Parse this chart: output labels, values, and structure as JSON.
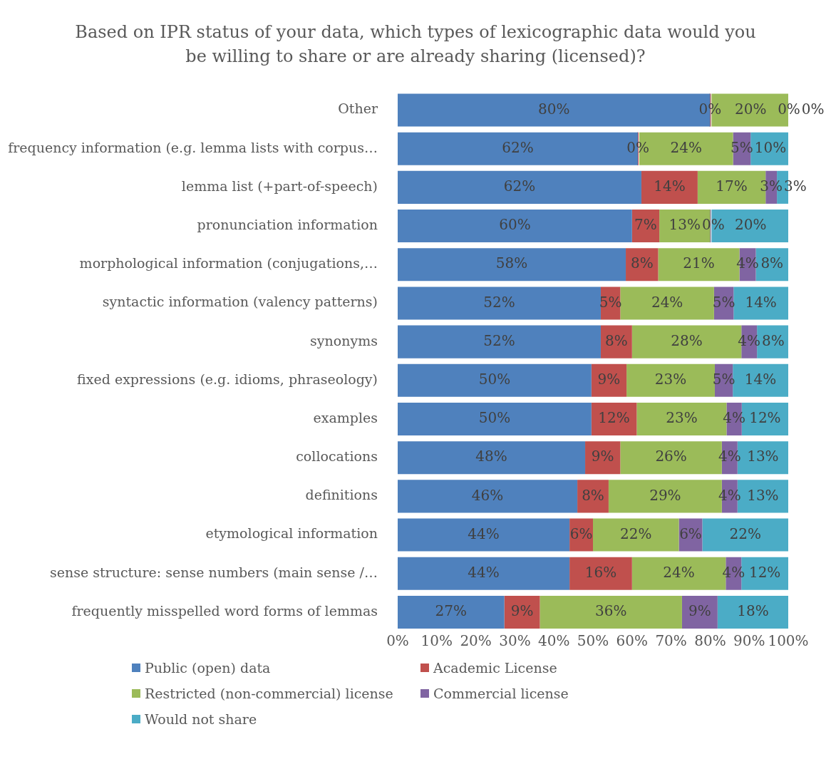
{
  "chart_data": {
    "type": "bar",
    "orientation": "horizontal",
    "stacked": true,
    "title": "Based on IPR status of your data, which types of lexicographic data would you be willing to share or are already sharing (licensed)?",
    "categories": [
      "Other",
      "frequency information (e.g. lemma lists with corpus…",
      "lemma list (+part-of-speech)",
      "pronunciation information",
      "morphological information (conjugations,…",
      "syntactic information (valency patterns)",
      "synonyms",
      "fixed expressions (e.g. idioms, phraseology)",
      "examples",
      "collocations",
      "definitions",
      "etymological information",
      "sense structure: sense numbers (main sense /…",
      "frequently misspelled word forms of lemmas"
    ],
    "series": [
      {
        "name": "Public (open) data",
        "color": "#4f81bd",
        "values": [
          80,
          61.5,
          62.4,
          60,
          58.4,
          52,
          52,
          49.6,
          49.6,
          48,
          46,
          44,
          44,
          27.3
        ],
        "value_labels": [
          "80%",
          "62%",
          "62%",
          "60%",
          "58%",
          "52%",
          "52%",
          "50%",
          "50%",
          "48%",
          "46%",
          "44%",
          "44%",
          "27%"
        ]
      },
      {
        "name": "Academic License",
        "color": "#c0504d",
        "values": [
          0,
          0,
          14.4,
          7,
          8.3,
          5,
          8,
          9,
          11.6,
          9,
          8,
          6,
          16,
          9.1
        ],
        "value_labels": [
          "0%",
          "0%",
          "14%",
          "7%",
          "8%",
          "5%",
          "8%",
          "9%",
          "12%",
          "9%",
          "8%",
          "6%",
          "16%",
          "9%"
        ]
      },
      {
        "name": "Restricted (non-commercial) license",
        "color": "#9bbb59",
        "values": [
          20,
          24,
          17.4,
          13,
          20.8,
          24,
          28,
          22.6,
          23,
          26,
          29,
          22,
          24,
          36.4
        ],
        "value_labels": [
          "20%",
          "24%",
          "17%",
          "13%",
          "21%",
          "24%",
          "28%",
          "23%",
          "23%",
          "26%",
          "29%",
          "22%",
          "24%",
          "36%"
        ]
      },
      {
        "name": "Commercial license",
        "color": "#8064a2",
        "values": [
          0,
          4.5,
          2.9,
          0,
          4.2,
          5,
          4,
          4.6,
          3.9,
          4,
          4,
          6,
          4,
          9.1
        ],
        "value_labels": [
          "0%",
          "5%",
          "3%",
          "0%",
          "4%",
          "5%",
          "4%",
          "5%",
          "4%",
          "4%",
          "4%",
          "6%",
          "4%",
          "9%"
        ]
      },
      {
        "name": "Would not share",
        "color": "#4bacc6",
        "values": [
          0,
          10,
          2.9,
          20,
          8.3,
          14,
          8,
          14.2,
          11.9,
          13,
          13,
          22,
          12,
          18.1
        ],
        "value_labels": [
          "0%",
          "10%",
          "3%",
          "20%",
          "8%",
          "14%",
          "8%",
          "14%",
          "12%",
          "13%",
          "13%",
          "22%",
          "12%",
          "18%"
        ]
      }
    ],
    "xlim": [
      0,
      100
    ],
    "xticks": [
      {
        "value": 0,
        "label": "0%"
      },
      {
        "value": 10,
        "label": "10%"
      },
      {
        "value": 20,
        "label": "20%"
      },
      {
        "value": 30,
        "label": "30%"
      },
      {
        "value": 40,
        "label": "40%"
      },
      {
        "value": 50,
        "label": "50%"
      },
      {
        "value": 60,
        "label": "60%"
      },
      {
        "value": 70,
        "label": "70%"
      },
      {
        "value": 80,
        "label": "80%"
      },
      {
        "value": 90,
        "label": "90%"
      },
      {
        "value": 100,
        "label": "100%"
      }
    ],
    "legend": "bottom",
    "grid": false
  }
}
